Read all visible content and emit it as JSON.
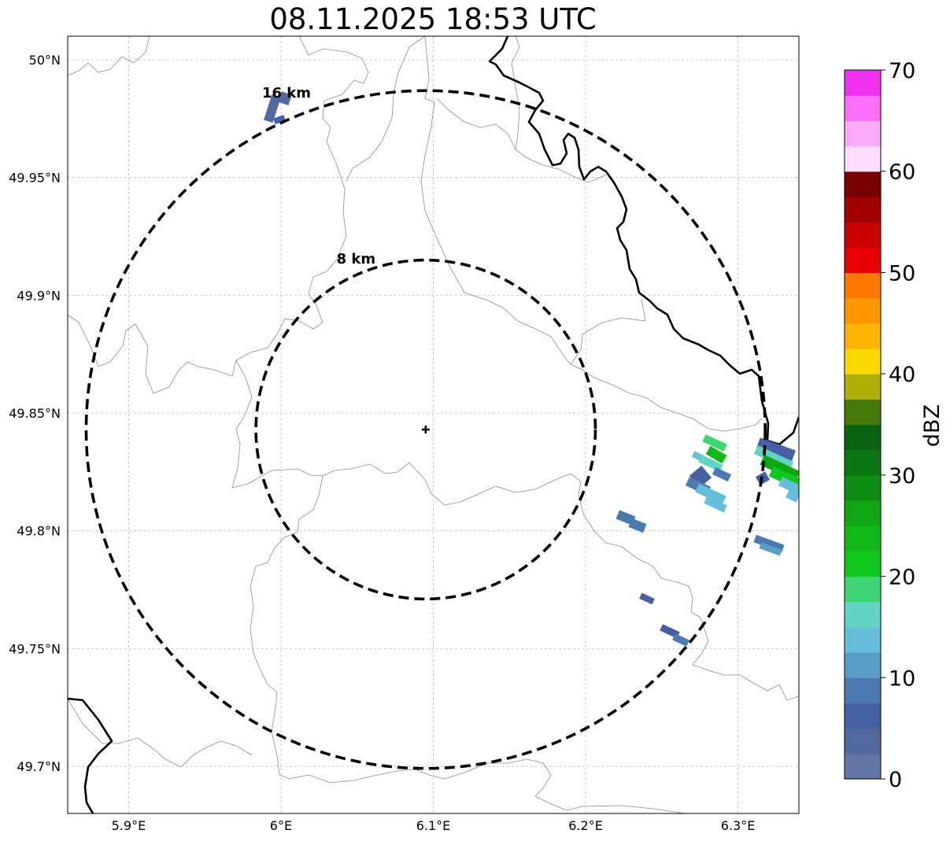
{
  "title": "08.11.2025 18:53 UTC",
  "map": {
    "lon_range": [
      5.86,
      6.34
    ],
    "lat_range": [
      49.68,
      50.01
    ],
    "lon_ticks": [
      5.9,
      6.0,
      6.1,
      6.2,
      6.3
    ],
    "lon_tick_labels": [
      "5.9°E",
      "6°E",
      "6.1°E",
      "6.2°E",
      "6.3°E"
    ],
    "lat_ticks": [
      49.7,
      49.75,
      49.8,
      49.85,
      49.9,
      49.95,
      50.0
    ],
    "lat_tick_labels": [
      "49.7°N",
      "49.75°N",
      "49.8°N",
      "49.85°N",
      "49.9°N",
      "49.95°N",
      "50°N"
    ],
    "gridlines": true,
    "radar_site": {
      "lon": 6.095,
      "lat": 49.843,
      "marker": "plus"
    },
    "range_rings": [
      {
        "radius_km": 8,
        "label": "8 km"
      },
      {
        "radius_km": 16,
        "label": "16 km"
      }
    ]
  },
  "colorbar": {
    "label": "dBZ",
    "min": 0,
    "max": 70,
    "tick_values": [
      0,
      10,
      20,
      30,
      40,
      50,
      60,
      70
    ],
    "tick_labels": [
      "0",
      "10",
      "20",
      "30",
      "40",
      "50",
      "60",
      "70"
    ],
    "colors": [
      "#6276a6",
      "#5468a0",
      "#4660a4",
      "#4a7ab0",
      "#5a9ec8",
      "#64bedc",
      "#62d4c4",
      "#3ed674",
      "#10c81c",
      "#10b818",
      "#0fa614",
      "#0d8c12",
      "#0a7812",
      "#086410",
      "#487a0a",
      "#aeb008",
      "#fad800",
      "#fcb400",
      "#fe9600",
      "#fe7800",
      "#e80000",
      "#c80000",
      "#a00000",
      "#780000",
      "#fedcfe",
      "#fcaafc",
      "#fc6efc",
      "#f032f0"
    ]
  }
}
